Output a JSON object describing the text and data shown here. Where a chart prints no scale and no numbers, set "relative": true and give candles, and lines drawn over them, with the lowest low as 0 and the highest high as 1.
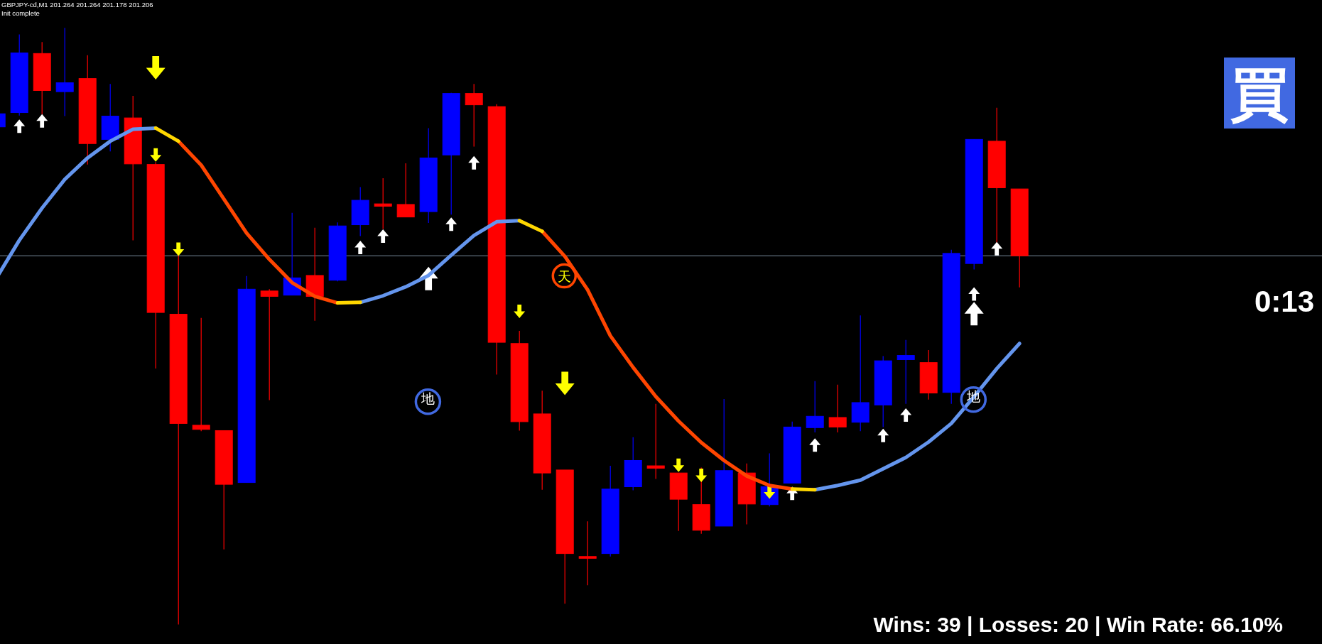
{
  "chart_data": {
    "type": "candlestick",
    "title": "GBPJPY-cd,M1 201.264 201.264 201.178 201.206",
    "relative": true,
    "categories": [
      null,
      null,
      null,
      null,
      null,
      null,
      null,
      null,
      null,
      null,
      null,
      null,
      null,
      null,
      null,
      null,
      null,
      null,
      null,
      null,
      null,
      null,
      null,
      null,
      null,
      null,
      null,
      null,
      null,
      null,
      null,
      null,
      null,
      null,
      null,
      null,
      null,
      null,
      null,
      null,
      null,
      null,
      null,
      null,
      null,
      null
    ],
    "ohlc": [
      [
        0.834,
        0.856,
        0.834,
        0.856
      ],
      [
        0.858,
        0.989,
        0.853,
        0.958
      ],
      [
        0.957,
        0.976,
        0.855,
        0.895
      ],
      [
        0.893,
        1.0,
        0.852,
        0.908
      ],
      [
        0.915,
        0.954,
        0.771,
        0.806
      ],
      [
        0.813,
        0.906,
        0.793,
        0.852
      ],
      [
        0.849,
        0.886,
        0.644,
        0.772
      ],
      [
        0.771,
        0.775,
        0.429,
        0.523
      ],
      [
        0.52,
        0.619,
        0.0,
        0.337
      ],
      [
        0.334,
        0.514,
        0.324,
        0.327
      ],
      [
        0.325,
        0.325,
        0.126,
        0.235
      ],
      [
        0.238,
        0.584,
        0.238,
        0.562
      ],
      [
        0.559,
        0.562,
        0.376,
        0.55
      ],
      [
        0.552,
        0.69,
        0.552,
        0.581
      ],
      [
        0.585,
        0.665,
        0.509,
        0.55
      ],
      [
        0.577,
        0.674,
        0.575,
        0.668
      ],
      [
        0.67,
        0.733,
        0.651,
        0.711
      ],
      [
        0.705,
        0.748,
        0.663,
        0.701
      ],
      [
        0.704,
        0.773,
        0.683,
        0.683
      ],
      [
        0.692,
        0.832,
        0.673,
        0.782
      ],
      [
        0.787,
        0.891,
        0.687,
        0.89
      ],
      [
        0.89,
        0.906,
        0.801,
        0.871
      ],
      [
        0.868,
        0.872,
        0.419,
        0.473
      ],
      [
        0.471,
        0.492,
        0.325,
        0.34
      ],
      [
        0.353,
        0.392,
        0.226,
        0.254
      ],
      [
        0.259,
        0.259,
        0.035,
        0.119
      ],
      [
        0.114,
        0.173,
        0.066,
        0.111
      ],
      [
        0.119,
        0.266,
        0.114,
        0.227
      ],
      [
        0.231,
        0.314,
        0.225,
        0.275
      ],
      [
        0.266,
        0.37,
        0.244,
        0.262
      ],
      [
        0.254,
        0.254,
        0.157,
        0.21
      ],
      [
        0.201,
        0.263,
        0.152,
        0.158
      ],
      [
        0.165,
        0.378,
        0.165,
        0.258
      ],
      [
        0.254,
        0.27,
        0.168,
        0.202
      ],
      [
        0.201,
        0.287,
        0.198,
        0.231
      ],
      [
        0.237,
        0.34,
        0.237,
        0.331
      ],
      [
        0.33,
        0.408,
        0.322,
        0.349
      ],
      [
        0.347,
        0.402,
        0.322,
        0.331
      ],
      [
        0.339,
        0.518,
        0.324,
        0.372
      ],
      [
        0.368,
        0.45,
        0.331,
        0.442
      ],
      [
        0.444,
        0.477,
        0.37,
        0.451
      ],
      [
        0.439,
        0.46,
        0.377,
        0.388
      ],
      [
        0.389,
        0.628,
        0.37,
        0.622
      ],
      [
        0.605,
        0.813,
        0.595,
        0.813
      ],
      [
        0.81,
        0.866,
        0.637,
        0.732
      ],
      [
        0.73,
        0.73,
        0.565,
        0.618
      ]
    ],
    "colors": [
      "#0000ff",
      "#0000ff",
      "#ff0000",
      "#0000ff",
      "#ff0000",
      "#0000ff",
      "#ff0000",
      "#ff0000",
      "#ff0000",
      "#ff0000",
      "#ff0000",
      "#0000ff",
      "#ff0000",
      "#0000ff",
      "#ff0000",
      "#0000ff",
      "#0000ff",
      "#ff0000",
      "#ff0000",
      "#0000ff",
      "#0000ff",
      "#ff0000",
      "#ff0000",
      "#ff0000",
      "#ff0000",
      "#ff0000",
      "#ff0000",
      "#0000ff",
      "#0000ff",
      "#ff0000",
      "#ff0000",
      "#ff0000",
      "#0000ff",
      "#ff0000",
      "#0000ff",
      "#0000ff",
      "#0000ff",
      "#ff0000",
      "#0000ff",
      "#0000ff",
      "#0000ff",
      "#ff0000",
      "#0000ff",
      "#0000ff",
      "#ff0000",
      "#ff0000"
    ],
    "series": [
      {
        "type": "line",
        "color": "#6495ed",
        "values": [
          0.581,
          0.644,
          0.698,
          0.746,
          0.782,
          0.81,
          0.83,
          0.832,
          null,
          null,
          null,
          null,
          null,
          null,
          null,
          null,
          0.54,
          0.551,
          0.566,
          0.585,
          0.619,
          0.652,
          0.675,
          0.677,
          null,
          null,
          null,
          null,
          null,
          null,
          null,
          null,
          null,
          null,
          null,
          null,
          0.226,
          0.233,
          0.242,
          0.261,
          0.28,
          0.306,
          0.337,
          0.382,
          0.429,
          0.471
        ]
      },
      {
        "type": "line",
        "color": "#ff4500",
        "values": [
          null,
          null,
          null,
          null,
          null,
          null,
          null,
          null,
          0.81,
          0.77,
          0.713,
          0.656,
          0.612,
          0.573,
          0.55,
          0.539,
          null,
          null,
          null,
          null,
          null,
          null,
          null,
          null,
          0.659,
          0.617,
          0.561,
          0.484,
          0.431,
          0.382,
          0.341,
          0.305,
          0.275,
          0.249,
          0.233,
          0.227,
          null,
          null,
          null,
          null,
          null,
          null,
          null,
          null,
          null,
          null
        ]
      },
      {
        "type": "line",
        "color": "#ffd700",
        "values": [
          null,
          null,
          null,
          null,
          null,
          null,
          null,
          0.832,
          0.81,
          null,
          null,
          null,
          null,
          null,
          null,
          0.539,
          0.54,
          null,
          null,
          null,
          null,
          null,
          null,
          0.677,
          0.659,
          null,
          null,
          null,
          null,
          null,
          null,
          null,
          null,
          null,
          null,
          0.227,
          0.226,
          null,
          null,
          null,
          null,
          null,
          null,
          null,
          null,
          null
        ]
      },
      {
        "type": "scatter",
        "color": "#ffffff",
        "marker": "triangle",
        "values": [
          null,
          0.835,
          0.844,
          null,
          null,
          null,
          null,
          null,
          null,
          null,
          null,
          null,
          null,
          null,
          null,
          null,
          0.632,
          0.651,
          null,
          null,
          0.671,
          0.774,
          null,
          null,
          null,
          null,
          null,
          null,
          null,
          null,
          null,
          null,
          null,
          null,
          null,
          0.22,
          0.301,
          null,
          null,
          0.317,
          0.351,
          null,
          null,
          0.554,
          0.63,
          null
        ]
      },
      {
        "type": "scatter",
        "color": "#ffffff",
        "marker": "triangle",
        "values": [
          null,
          null,
          null,
          null,
          null,
          null,
          null,
          null,
          null,
          null,
          null,
          null,
          null,
          null,
          null,
          null,
          null,
          null,
          null,
          0.58,
          null,
          null,
          null,
          null,
          null,
          null,
          null,
          null,
          null,
          null,
          null,
          null,
          null,
          null,
          null,
          null,
          null,
          null,
          null,
          null,
          null,
          null,
          null,
          0.521,
          null,
          null
        ]
      },
      {
        "type": "scatter",
        "color": "#ffff00",
        "marker": "triangle-down",
        "values": [
          null,
          null,
          null,
          null,
          null,
          null,
          null,
          0.787,
          0.629,
          null,
          null,
          null,
          null,
          null,
          null,
          null,
          null,
          null,
          null,
          null,
          null,
          null,
          null,
          0.525,
          null,
          null,
          null,
          null,
          null,
          null,
          0.267,
          0.25,
          null,
          null,
          0.222,
          null,
          null,
          null,
          null,
          null,
          null,
          null,
          null,
          null,
          null,
          null
        ]
      },
      {
        "type": "scatter",
        "color": "#ffff00",
        "marker": "triangle-down",
        "values": [
          null,
          null,
          null,
          null,
          null,
          null,
          null,
          0.933,
          null,
          null,
          null,
          null,
          null,
          null,
          null,
          null,
          null,
          null,
          null,
          null,
          null,
          null,
          null,
          null,
          null,
          0.404,
          null,
          null,
          null,
          null,
          null,
          null,
          null,
          null,
          null,
          null,
          null,
          null,
          null,
          null,
          null,
          null,
          null,
          null,
          null,
          null
        ]
      }
    ],
    "ref_lines": [
      {
        "axis": "y",
        "value": 0.618,
        "color": "#778899"
      }
    ],
    "annotations": [
      "Init complete",
      "買",
      "天",
      "地",
      "地",
      "0:13",
      "Wins: 39 | Losses: 20 | Win Rate: 66.10%"
    ]
  }
}
